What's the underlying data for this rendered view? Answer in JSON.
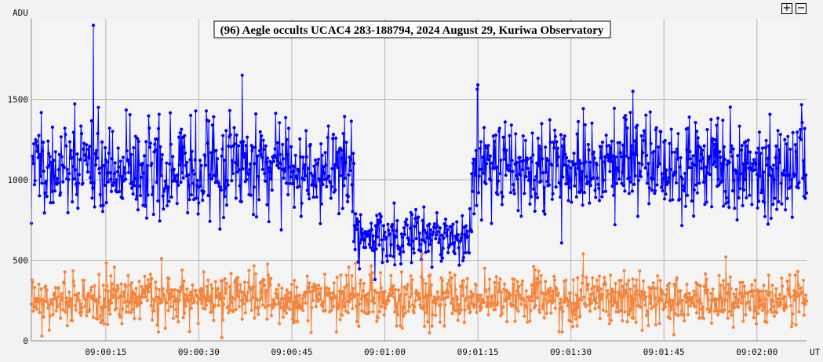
{
  "chart_data": {
    "type": "line",
    "title": "(96) Aegle occults UCAC4 283-188794, 2024 August 29, Kuriwa Observatory",
    "ylabel": "ADU",
    "xlabel": "UT",
    "ylim": [
      0,
      2000
    ],
    "xlim": [
      "09:00:03",
      "09:02:08"
    ],
    "y_ticks": [
      "0",
      "500",
      "1000",
      "1500"
    ],
    "x_ticks": [
      "09:00:15",
      "09:00:30",
      "09:00:45",
      "09:01:00",
      "09:01:15",
      "09:01:30",
      "09:01:45",
      "09:02:00"
    ],
    "grid": true,
    "series": [
      {
        "color": "#0000ff",
        "segments": [
          {
            "x_range": [
              "09:00:03",
              "09:00:55"
            ],
            "mean": 1080,
            "spread": 150
          },
          {
            "x_range": [
              "09:00:55",
              "09:01:14"
            ],
            "mean": 640,
            "spread": 80
          },
          {
            "x_range": [
              "09:01:14",
              "09:02:08"
            ],
            "mean": 1080,
            "spread": 150
          }
        ],
        "highlights": [
          {
            "x": "09:00:13",
            "y": 1960
          },
          {
            "x": "09:00:37",
            "y": 1650
          },
          {
            "x": "09:01:15",
            "y": 1590
          },
          {
            "x": "09:01:40",
            "y": 1550
          }
        ]
      },
      {
        "color": "#f5843a",
        "segments": [
          {
            "x_range": [
              "09:00:03",
              "09:02:08"
            ],
            "mean": 260,
            "spread": 80
          }
        ],
        "highlights": [
          {
            "x": "09:00:24",
            "y": 510
          },
          {
            "x": "09:01:06",
            "y": 540
          },
          {
            "x": "09:01:32",
            "y": 540
          },
          {
            "x": "09:01:55",
            "y": 520
          }
        ]
      }
    ]
  },
  "controls": {
    "zoom_in_label": "+",
    "zoom_out_label": "−"
  }
}
